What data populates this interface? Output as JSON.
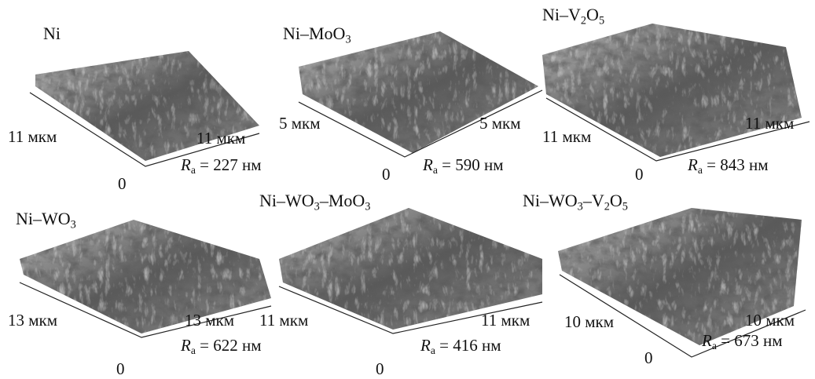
{
  "panels": [
    {
      "title": "Ni",
      "axis_left": "11 мкм",
      "axis_right": "11 мкм",
      "origin": "0",
      "roughness": {
        "symbol": "R",
        "subscript": "a",
        "value": " = 227 нм"
      }
    },
    {
      "title": "Ni–MoO3",
      "axis_left": "5 мкм",
      "axis_right": "5 мкм",
      "origin": "0",
      "roughness": {
        "symbol": "R",
        "subscript": "a",
        "value": " = 590 нм"
      }
    },
    {
      "title": "Ni–V2O5",
      "axis_left": "11 мкм",
      "axis_right": "11 мкм",
      "origin": "0",
      "roughness": {
        "symbol": "R",
        "subscript": "a",
        "value": " = 843 нм"
      }
    },
    {
      "title": "Ni–WO3",
      "axis_left": "13 мкм",
      "axis_right": "13 мкм",
      "origin": "0",
      "roughness": {
        "symbol": "R",
        "subscript": "a",
        "value": " = 622 нм"
      }
    },
    {
      "title": "Ni–WO3–MoO3",
      "axis_left": "11 мкм",
      "axis_right": "11 мкм",
      "origin": "0",
      "roughness": {
        "symbol": "R",
        "subscript": "a",
        "value": " = 416 нм"
      }
    },
    {
      "title": "Ni–WO3–V2O5",
      "axis_left": "10 мкм",
      "axis_right": "10 мкм",
      "origin": "0",
      "roughness": {
        "symbol": "R",
        "subscript": "a",
        "value": " = 673 нм"
      }
    }
  ]
}
